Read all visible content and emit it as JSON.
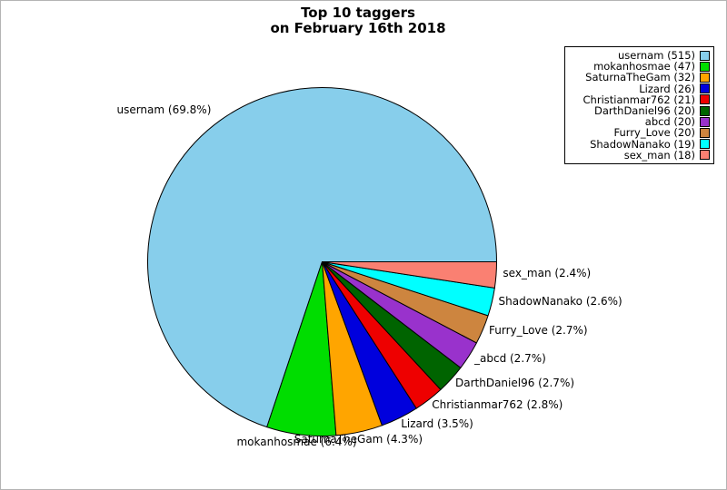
{
  "figure": {
    "title_line1": "Top 10 taggers",
    "title_line2": "on February 16th 2018",
    "background": "#ffffff",
    "border_color": "#b4b4b4"
  },
  "chart_data": {
    "type": "pie",
    "title": "Top 10 taggers on February 16th 2018",
    "start_angle_deg": 0,
    "direction": "counterclockwise",
    "edge_color": "#000000",
    "legend_position": "top-right",
    "series": [
      {
        "name": "usernam",
        "count": 515,
        "percent": 69.8,
        "color": "#87ceeb",
        "slice_label": "usernam (69.8%)",
        "legend_label": "usernam (515)"
      },
      {
        "name": "mokanhosmae",
        "count": 47,
        "percent": 6.4,
        "color": "#00dd00",
        "slice_label": "mokanhosmae (6.4%)",
        "legend_label": "mokanhosmae (47)"
      },
      {
        "name": "SaturnaTheGam",
        "count": 32,
        "percent": 4.3,
        "color": "#ffa500",
        "slice_label": "SaturnaTheGam (4.3%)",
        "legend_label": "SaturnaTheGam (32)"
      },
      {
        "name": "Lizard",
        "count": 26,
        "percent": 3.5,
        "color": "#0000dd",
        "slice_label": "Lizard (3.5%)",
        "legend_label": "Lizard (26)"
      },
      {
        "name": "Christianmar762",
        "count": 21,
        "percent": 2.8,
        "color": "#ee0000",
        "slice_label": "Christianmar762 (2.8%)",
        "legend_label": "Christianmar762 (21)"
      },
      {
        "name": "DarthDaniel96",
        "count": 20,
        "percent": 2.7,
        "color": "#006400",
        "slice_label": "DarthDaniel96 (2.7%)",
        "legend_label": "DarthDaniel96 (20)"
      },
      {
        "name": "_abcd",
        "count": 20,
        "percent": 2.7,
        "color": "#9932cc",
        "slice_label": "_abcd (2.7%)",
        "legend_label": "abcd (20)"
      },
      {
        "name": "Furry_Love",
        "count": 20,
        "percent": 2.7,
        "color": "#cd853f",
        "slice_label": "Furry_Love (2.7%)",
        "legend_label": "Furry_Love (20)"
      },
      {
        "name": "ShadowNanako",
        "count": 19,
        "percent": 2.6,
        "color": "#00ffff",
        "slice_label": "ShadowNanako (2.6%)",
        "legend_label": "ShadowNanako (19)"
      },
      {
        "name": "sex_man",
        "count": 18,
        "percent": 2.4,
        "color": "#fa8072",
        "slice_label": "sex_man (2.4%)",
        "legend_label": "sex_man (18)"
      }
    ]
  }
}
